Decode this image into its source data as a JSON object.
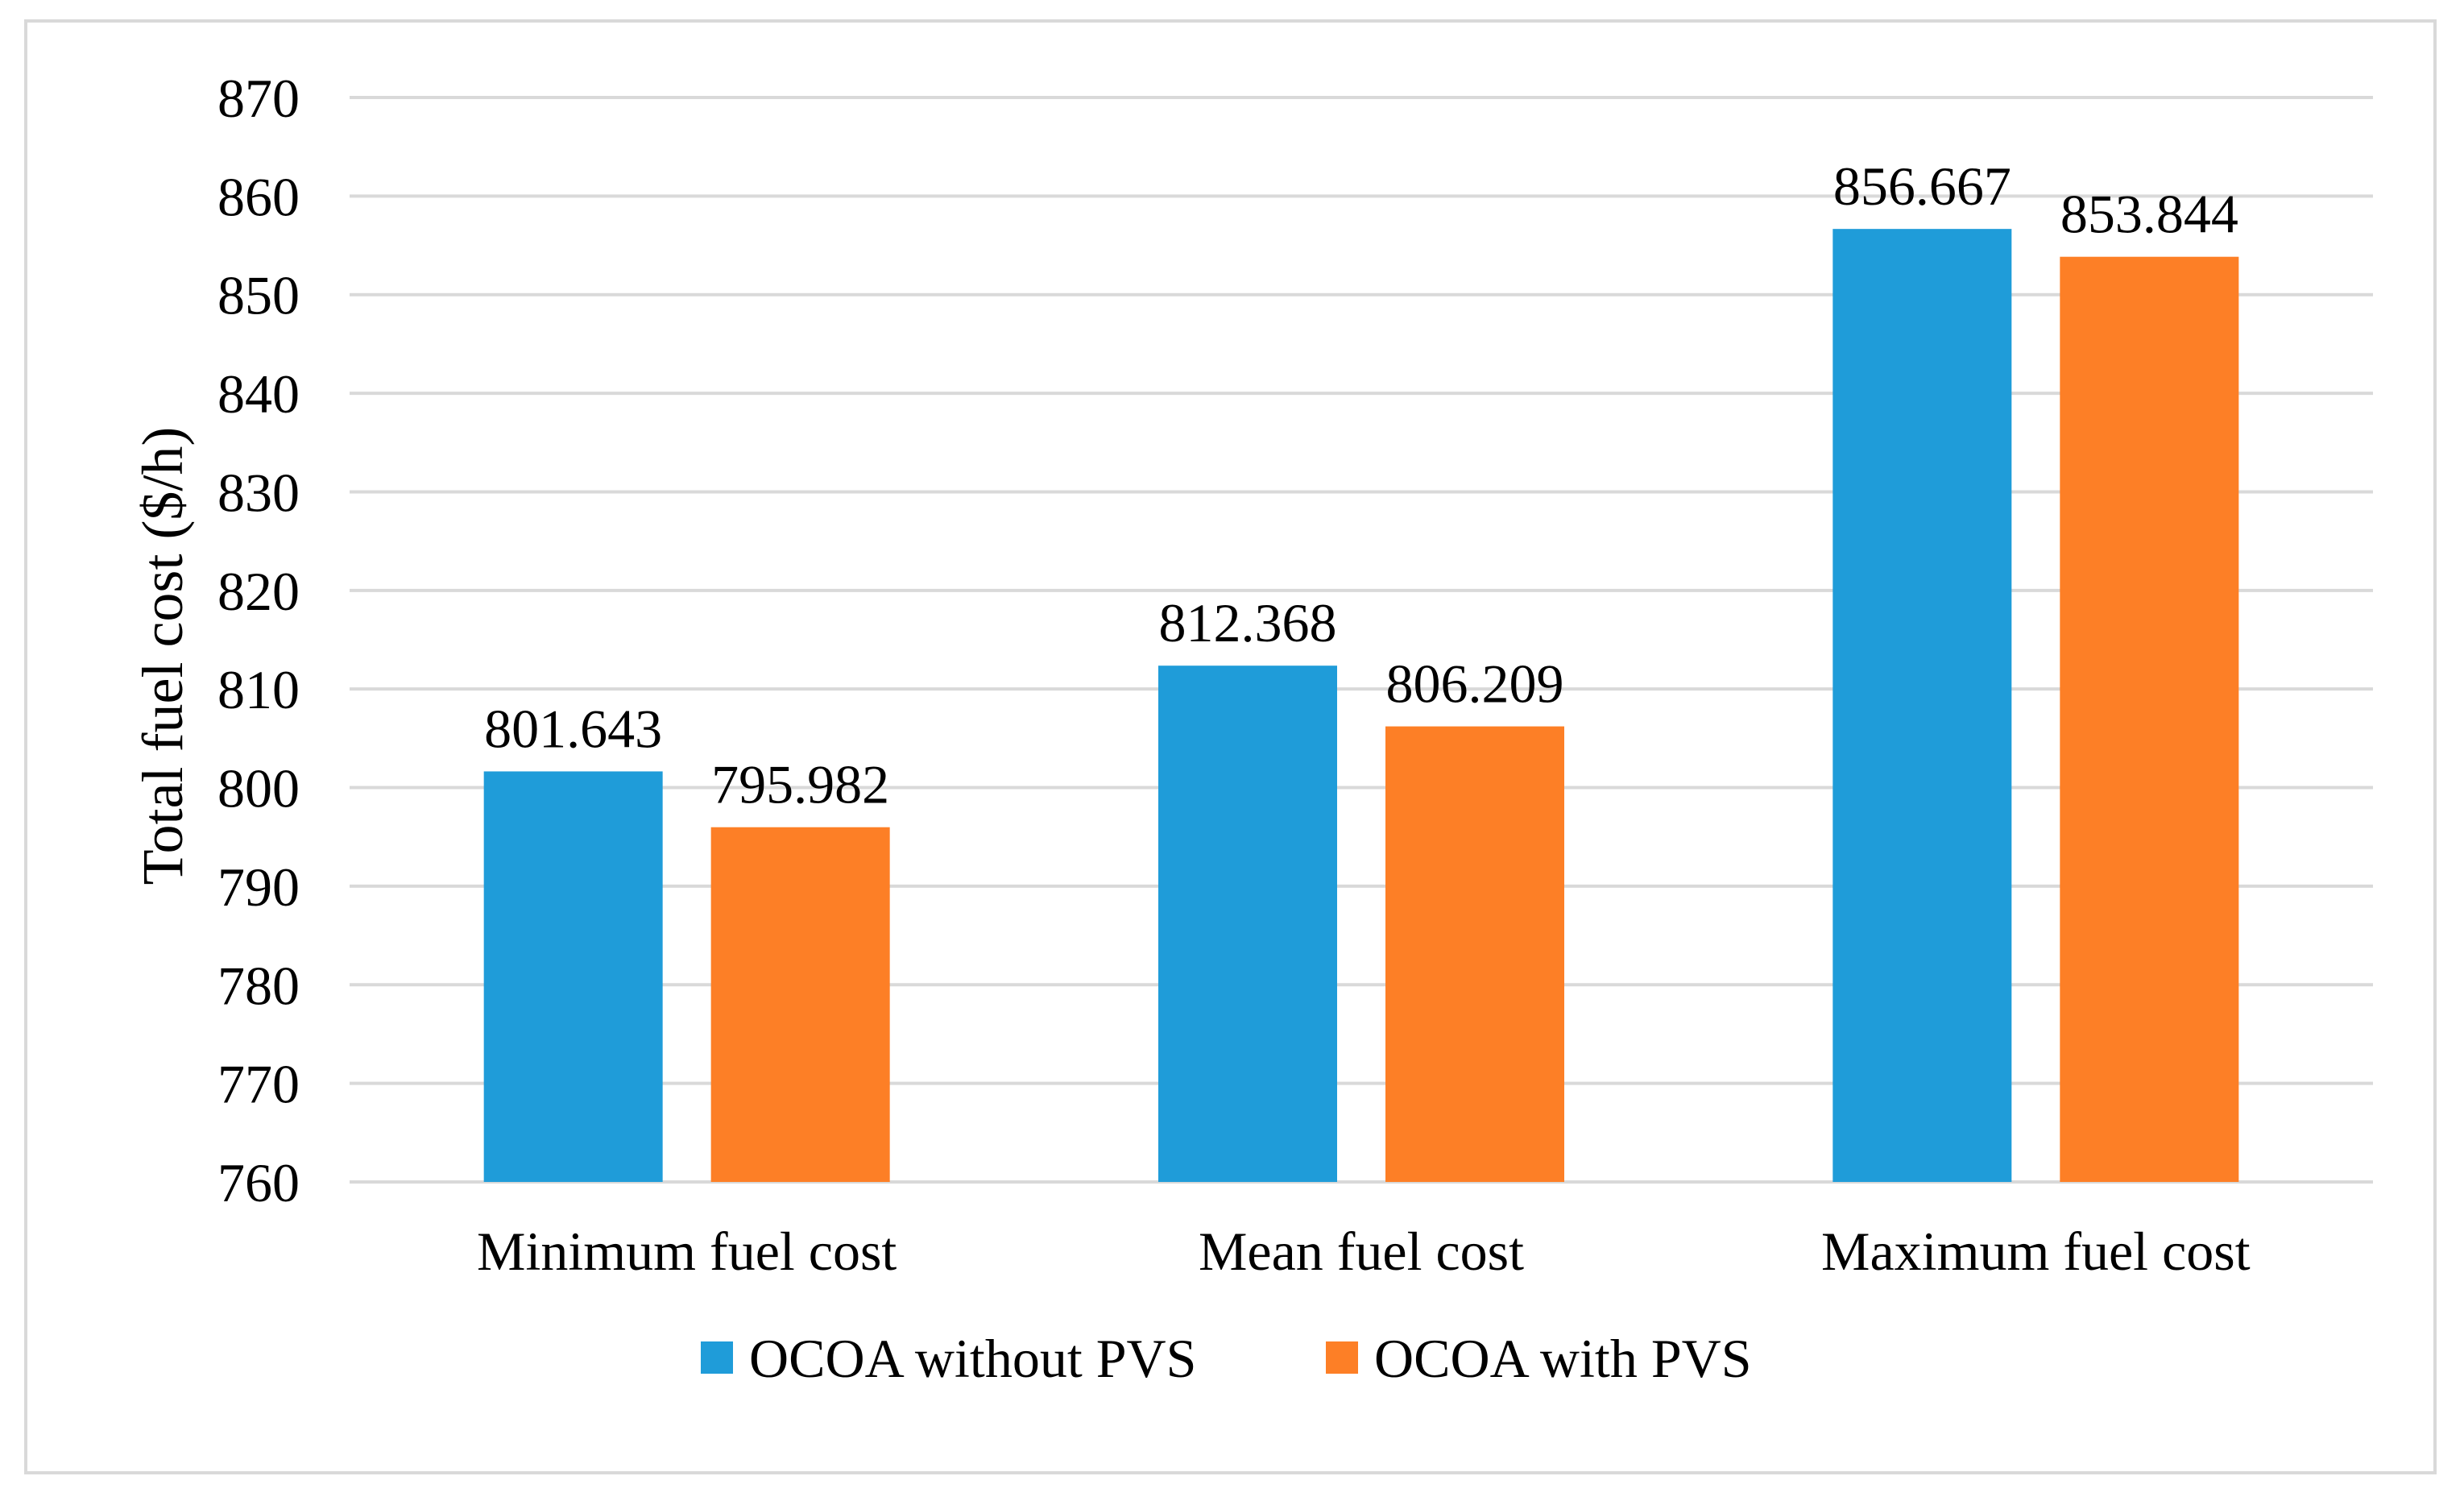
{
  "chart_data": {
    "type": "bar",
    "title": "",
    "xlabel": "",
    "ylabel": "Total fuel cost ($/h)",
    "ylim": [
      760,
      870
    ],
    "yticks": [
      760,
      770,
      780,
      790,
      800,
      810,
      820,
      830,
      840,
      850,
      860,
      870
    ],
    "grid": true,
    "legend_position": "bottom",
    "categories": [
      "Minimum fuel cost",
      "Mean fuel cost",
      "Maximum fuel cost"
    ],
    "series": [
      {
        "name": "OCOA without PVS",
        "color": "#1f9cd9",
        "values": [
          801.643,
          812.368,
          856.667
        ],
        "labels": [
          "801.643",
          "812.368",
          "856.667"
        ]
      },
      {
        "name": "OCOA with PVS",
        "color": "#fd7f26",
        "values": [
          795.982,
          806.209,
          853.844
        ],
        "labels": [
          "795.982",
          "806.209",
          "853.844"
        ]
      }
    ]
  }
}
